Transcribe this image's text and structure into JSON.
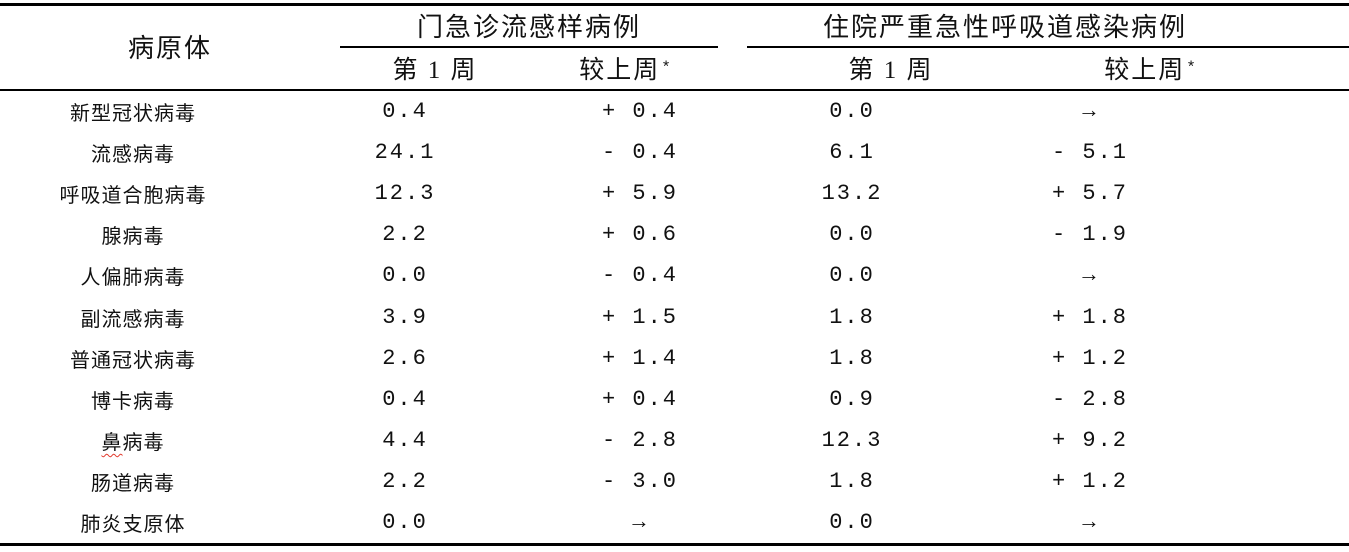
{
  "table": {
    "col1_header": "病原体",
    "group1": {
      "title": "门急诊流感样病例",
      "week1": "第 1 周",
      "vs_prev": "较上周",
      "asterisk": "*"
    },
    "group2": {
      "title": "住院严重急性呼吸道感染病例",
      "week1": "第 1 周",
      "vs_prev": "较上周",
      "asterisk": "*"
    },
    "rows": [
      {
        "pathogen": "新型冠状病毒",
        "outpatient_week1": "0.4",
        "outpatient_vs_prev": "+ 0.4",
        "inpatient_week1": "0.0",
        "inpatient_vs_prev": "→"
      },
      {
        "pathogen": "流感病毒",
        "outpatient_week1": "24.1",
        "outpatient_vs_prev": "- 0.4",
        "inpatient_week1": "6.1",
        "inpatient_vs_prev": "- 5.1"
      },
      {
        "pathogen": "呼吸道合胞病毒",
        "outpatient_week1": "12.3",
        "outpatient_vs_prev": "+ 5.9",
        "inpatient_week1": "13.2",
        "inpatient_vs_prev": "+ 5.7"
      },
      {
        "pathogen": "腺病毒",
        "outpatient_week1": "2.2",
        "outpatient_vs_prev": "+ 0.6",
        "inpatient_week1": "0.0",
        "inpatient_vs_prev": "- 1.9"
      },
      {
        "pathogen": "人偏肺病毒",
        "outpatient_week1": "0.0",
        "outpatient_vs_prev": "- 0.4",
        "inpatient_week1": "0.0",
        "inpatient_vs_prev": "→"
      },
      {
        "pathogen": "副流感病毒",
        "outpatient_week1": "3.9",
        "outpatient_vs_prev": "+ 1.5",
        "inpatient_week1": "1.8",
        "inpatient_vs_prev": "+ 1.8"
      },
      {
        "pathogen": "普通冠状病毒",
        "outpatient_week1": "2.6",
        "outpatient_vs_prev": "+ 1.4",
        "inpatient_week1": "1.8",
        "inpatient_vs_prev": "+ 1.2"
      },
      {
        "pathogen": "博卡病毒",
        "outpatient_week1": "0.4",
        "outpatient_vs_prev": "+ 0.4",
        "inpatient_week1": "0.9",
        "inpatient_vs_prev": "- 2.8"
      },
      {
        "pathogen": "鼻病毒",
        "pathogen_head": "鼻",
        "pathogen_tail": "病毒",
        "outpatient_week1": "4.4",
        "outpatient_vs_prev": "- 2.8",
        "inpatient_week1": "12.3",
        "inpatient_vs_prev": "+ 9.2"
      },
      {
        "pathogen": "肠道病毒",
        "outpatient_week1": "2.2",
        "outpatient_vs_prev": "- 3.0",
        "inpatient_week1": "1.8",
        "inpatient_vs_prev": "+ 1.2"
      },
      {
        "pathogen": "肺炎支原体",
        "outpatient_week1": "0.0",
        "outpatient_vs_prev": "→",
        "inpatient_week1": "0.0",
        "inpatient_vs_prev": "→"
      }
    ]
  },
  "colors": {
    "text": "#111111",
    "rule": "#000000",
    "squiggle": "#e23a2e",
    "background": "#ffffff"
  }
}
